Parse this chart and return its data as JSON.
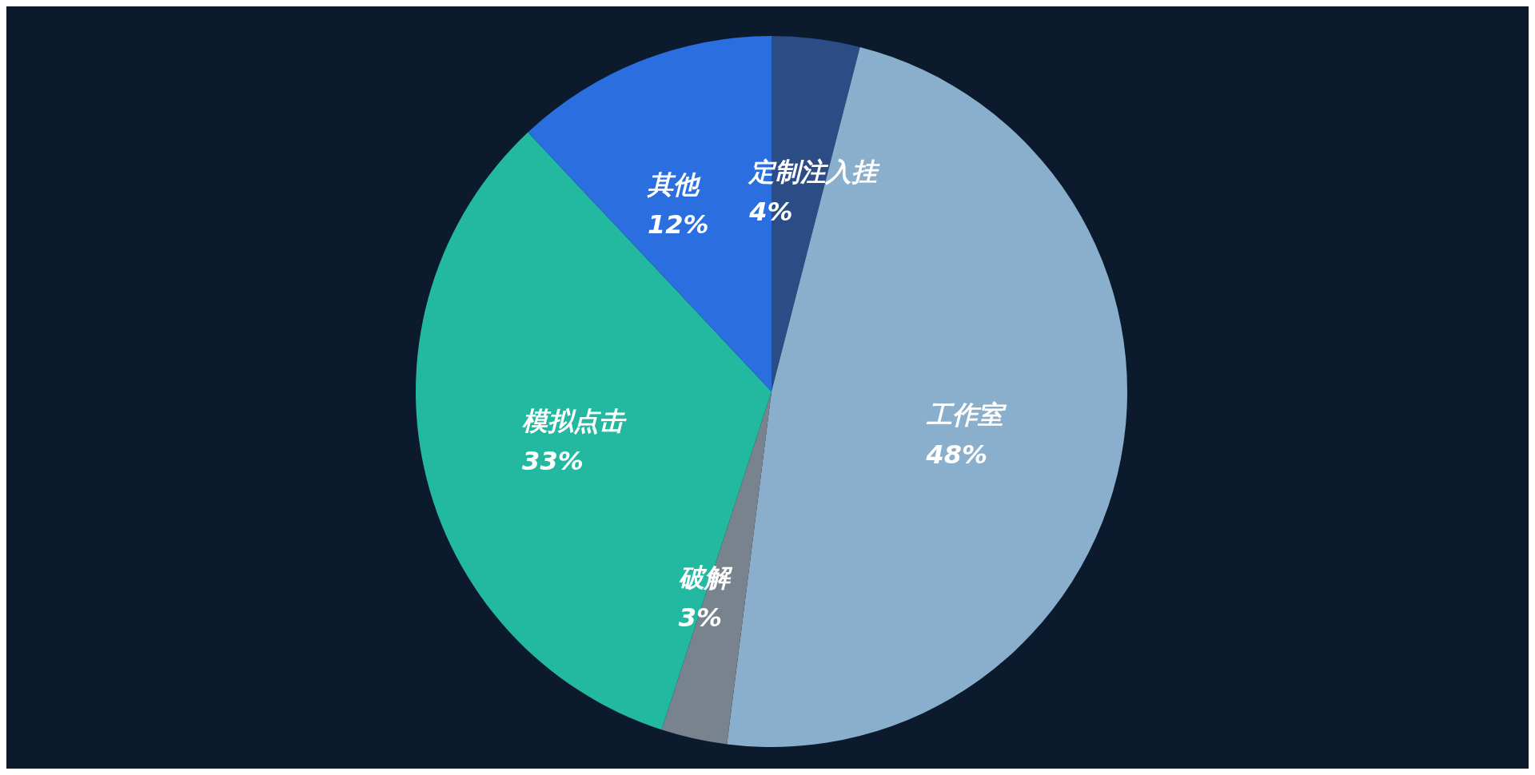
{
  "chart_data": {
    "type": "pie",
    "categories": [
      "定制注入挂",
      "工作室",
      "破解",
      "模拟点击",
      "其他"
    ],
    "values": [
      4,
      48,
      3,
      33,
      12
    ],
    "colors": [
      "#2b4c85",
      "#8aafcc",
      "#78838e",
      "#22b9a0",
      "#2a6ee0"
    ],
    "value_labels": [
      "4%",
      "48%",
      "3%",
      "33%",
      "12%"
    ],
    "legend": false
  }
}
